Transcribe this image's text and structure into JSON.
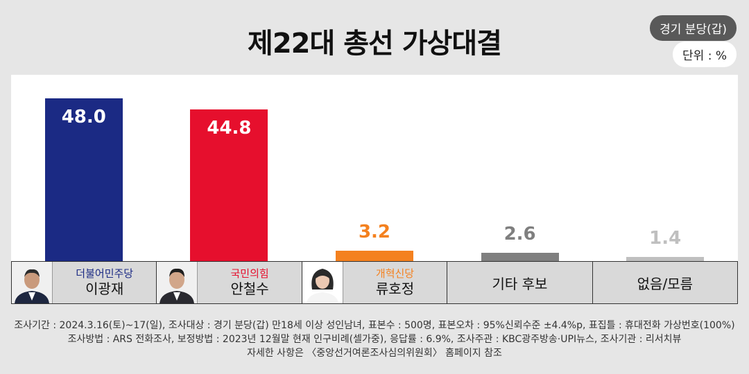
{
  "badges": {
    "region": "경기 분당(갑)",
    "unit": "단위 : %"
  },
  "chart_data": {
    "type": "bar",
    "title": "제22대 총선 가상대결",
    "categories": [
      "이광재",
      "안철수",
      "류호정",
      "기타 후보",
      "없음/모름"
    ],
    "values": [
      48.0,
      44.8,
      3.2,
      2.6,
      1.4
    ],
    "value_labels": [
      "48.0",
      "44.8",
      "3.2",
      "2.6",
      "1.4"
    ],
    "colors": [
      "#1b2a84",
      "#e60f2d",
      "#f4811f",
      "#7f7f7f",
      "#bfbfbf"
    ],
    "ylim": [
      0,
      55
    ],
    "grid": false,
    "legend": "bottom"
  },
  "candidates": [
    {
      "party": "더불어민주당",
      "name": "이광재",
      "party_color": "#1b2a84"
    },
    {
      "party": "국민의힘",
      "name": "안철수",
      "party_color": "#e60f2d"
    },
    {
      "party": "개혁신당",
      "name": "류호정",
      "party_color": "#f4811f"
    }
  ],
  "others": {
    "etc": "기타 후보",
    "none": "없음/모름"
  },
  "footer": {
    "line1": "조사기간 : 2024.3.16(토)~17(일), 조사대상 : 경기 분당(갑) 만18세 이상 성인남녀, 표본수 : 500명, 표본오차 : 95%신뢰수준 ±4.4%p, 표집틀 : 휴대전화 가상번호(100%)",
    "line2": "조사방법 : ARS 전화조사, 보정방법 : 2023년 12월말 현재 인구비례(셀가중), 응답률 : 6.9%, 조사주관 : KBC광주방송·UPI뉴스, 조사기관 : 리서치뷰",
    "line3": "자세한 사항은 〈중앙선거여론조사심의위원회〉 홈페이지 참조"
  }
}
